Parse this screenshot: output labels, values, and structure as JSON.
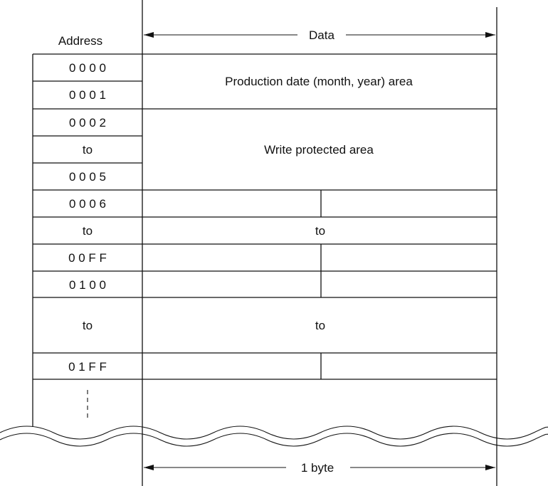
{
  "header": {
    "address_label": "Address",
    "data_label": "Data"
  },
  "rows": {
    "r0000": "0 0 0 0",
    "r0001": "0 0 0 1",
    "r0002": "0 0 0 2",
    "r_to_a": "to",
    "r0005": "0 0 0 5",
    "r0006": "0 0 0 6",
    "r_to_b": "to",
    "r00FF": "0 0 F F",
    "r0100": "0 1 0 0",
    "r_to_c": "to",
    "r01FF": "0 1 F F"
  },
  "data_areas": {
    "production_date": "Production date (month, year) area",
    "write_protected": "Write protected area",
    "to_b": "to",
    "to_c": "to"
  },
  "footer": {
    "byte_label": "1 byte"
  }
}
